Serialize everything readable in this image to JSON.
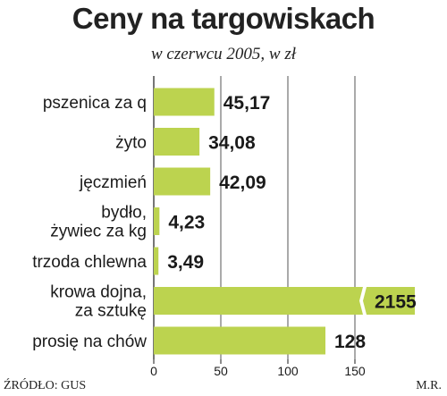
{
  "title": "Ceny na targowiskach",
  "subtitle": "w czerwcu 2005, w zł",
  "source": "ŹRÓDŁO: GUS",
  "author": "M.R.",
  "chart_data": {
    "type": "bar",
    "orientation": "horizontal",
    "xlim": [
      0,
      200
    ],
    "ticks": [
      0,
      50,
      100,
      150
    ],
    "grid": true,
    "bar_color": "#bcd34f",
    "categories": [
      [
        "pszenica za q"
      ],
      [
        "żyto"
      ],
      [
        "jęczmień"
      ],
      [
        "bydło,",
        "żywiec za kg"
      ],
      [
        "trzoda chlewna"
      ],
      [
        "krowa dojna,",
        "za sztukę"
      ],
      [
        "prosię na chów"
      ]
    ],
    "values": [
      45.17,
      34.08,
      42.09,
      4.23,
      3.49,
      2155,
      128
    ],
    "value_labels": [
      "45,17",
      "34,08",
      "42,09",
      "4,23",
      "3,49",
      "2155",
      "128"
    ],
    "broken_axis_bars": [
      5
    ]
  }
}
